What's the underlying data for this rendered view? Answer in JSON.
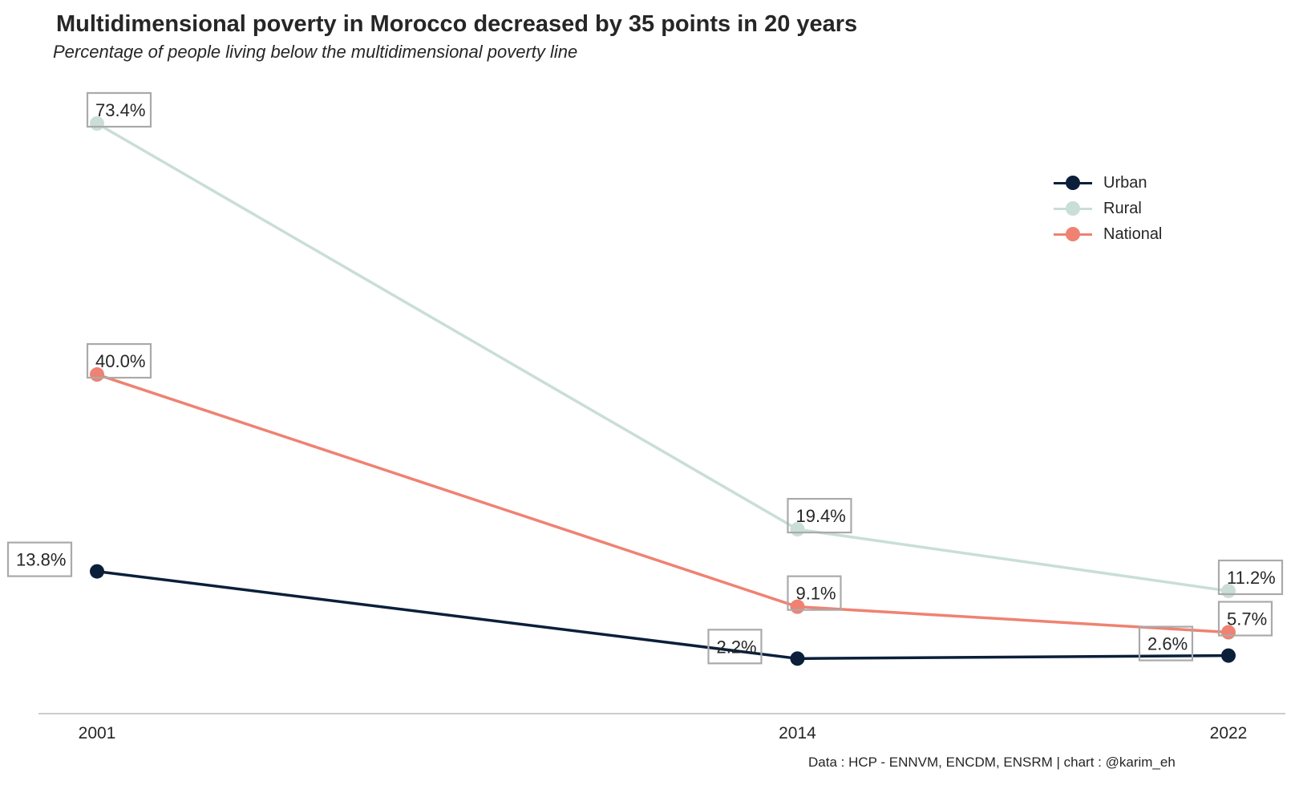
{
  "title": "Multidimensional poverty in Morocco decreased by 35 points in 20 years",
  "subtitle": "Percentage of people living below the multidimensional poverty line",
  "source": "Data : HCP - ENNVM, ENCDM, ENSRM | chart : @karim_eh",
  "chart_data": {
    "type": "line",
    "x": [
      "2001",
      "2014",
      "2022"
    ],
    "series": [
      {
        "name": "Urban",
        "color": "#0b1f3a",
        "values": [
          13.8,
          2.2,
          2.6
        ],
        "labels": [
          "13.8%",
          "2.2%",
          "2.6%"
        ]
      },
      {
        "name": "Rural",
        "color": "#c9ded6",
        "values": [
          73.4,
          19.4,
          11.2
        ],
        "labels": [
          "73.4%",
          "19.4%",
          "11.2%"
        ]
      },
      {
        "name": "National",
        "color": "#ef8272",
        "values": [
          40.0,
          9.1,
          5.7
        ],
        "labels": [
          "40.0%",
          "9.1%",
          "5.7%"
        ]
      }
    ],
    "xlabel": "",
    "ylabel": "",
    "ylim": [
      -1.5,
      73.4
    ],
    "grid": false,
    "legend": "top-right"
  }
}
